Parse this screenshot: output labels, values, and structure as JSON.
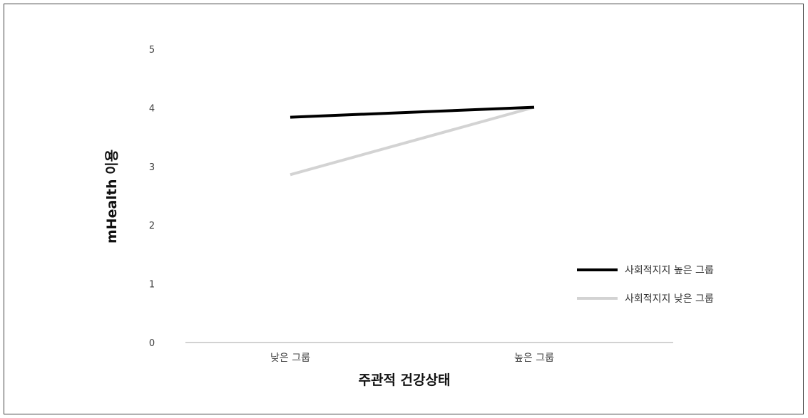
{
  "chart_data": {
    "type": "line",
    "title": "",
    "xlabel": "주관적 건강상태",
    "ylabel": "mHealth 이용",
    "categories": [
      "낮은 그룹",
      "높은 그룹"
    ],
    "ylim": [
      0,
      5
    ],
    "yticks": [
      "0",
      "1",
      "2",
      "3",
      "4",
      "5"
    ],
    "grid": false,
    "legend_position": "right",
    "series": [
      {
        "name": "사회적지지 높은 그룹",
        "values": [
          3.84,
          4.01
        ],
        "color": "#000000"
      },
      {
        "name": "사회적지지 낮은 그룹",
        "values": [
          2.86,
          4.01
        ],
        "color": "#d3d3d3"
      }
    ]
  }
}
